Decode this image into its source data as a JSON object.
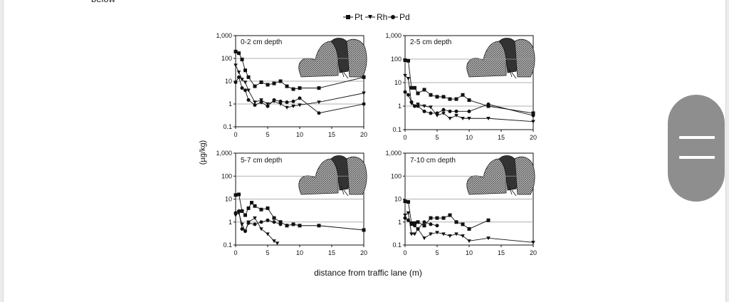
{
  "page": {
    "top_text": "below"
  },
  "figure": {
    "legend": [
      "Pt",
      "Rh",
      "Pd"
    ],
    "ylabel": "(µg/kg)",
    "xlabel": "distance from traffic lane (m)",
    "x_ticks": [
      "0",
      "5",
      "10",
      "15",
      "20"
    ],
    "y_ticks": [
      "0.1",
      "1",
      "10",
      "100",
      "1,000"
    ]
  },
  "chart_data": [
    {
      "type": "scatter",
      "title": "0-2 cm depth",
      "xlim": [
        0,
        20
      ],
      "ylim": [
        0.1,
        1000
      ],
      "yscale": "log",
      "grid": "horizontal",
      "series": [
        {
          "name": "Pt",
          "marker": "square",
          "points": [
            [
              0,
              200
            ],
            [
              0.5,
              170
            ],
            [
              1,
              90
            ],
            [
              1.5,
              30
            ],
            [
              2,
              15
            ],
            [
              3,
              6
            ],
            [
              4,
              9
            ],
            [
              5,
              7
            ],
            [
              6,
              8
            ],
            [
              7,
              10
            ],
            [
              8,
              6
            ],
            [
              9,
              4.5
            ],
            [
              10,
              5
            ],
            [
              13,
              5
            ],
            [
              20,
              15
            ]
          ]
        },
        {
          "name": "Rh",
          "marker": "triangle",
          "points": [
            [
              0,
              50
            ],
            [
              0.5,
              25
            ],
            [
              1,
              12
            ],
            [
              1.5,
              9
            ],
            [
              2,
              4
            ],
            [
              3,
              1.2
            ],
            [
              4,
              1.5
            ],
            [
              5,
              1
            ],
            [
              6,
              1.3
            ],
            [
              7,
              1
            ],
            [
              8,
              0.7
            ],
            [
              9,
              0.8
            ],
            [
              10,
              0.9
            ],
            [
              13,
              1.2
            ],
            [
              20,
              3
            ]
          ]
        },
        {
          "name": "Pd",
          "marker": "circle",
          "points": [
            [
              0,
              9
            ],
            [
              0.5,
              15
            ],
            [
              1,
              5
            ],
            [
              1.5,
              4
            ],
            [
              2,
              1.5
            ],
            [
              3,
              0.9
            ],
            [
              4,
              1.2
            ],
            [
              5,
              0.8
            ],
            [
              6,
              1.5
            ],
            [
              7,
              1.3
            ],
            [
              8,
              1.2
            ],
            [
              9,
              1.3
            ],
            [
              10,
              1.8
            ],
            [
              13,
              0.4
            ],
            [
              20,
              1
            ]
          ]
        }
      ]
    },
    {
      "type": "scatter",
      "title": "2-5 cm depth",
      "xlim": [
        0,
        20
      ],
      "ylim": [
        0.1,
        1000
      ],
      "yscale": "log",
      "grid": "horizontal",
      "series": [
        {
          "name": "Pt",
          "marker": "square",
          "points": [
            [
              0,
              90
            ],
            [
              0.5,
              85
            ],
            [
              1,
              6
            ],
            [
              1.5,
              6
            ],
            [
              2,
              3.5
            ],
            [
              3,
              5
            ],
            [
              4,
              3
            ],
            [
              5,
              2.5
            ],
            [
              6,
              2.5
            ],
            [
              7,
              2
            ],
            [
              8,
              2
            ],
            [
              9,
              3
            ],
            [
              10,
              1.8
            ],
            [
              13,
              1
            ],
            [
              20,
              0.5
            ]
          ]
        },
        {
          "name": "Rh",
          "marker": "triangle",
          "points": [
            [
              0,
              20
            ],
            [
              0.5,
              15
            ],
            [
              1,
              1.3
            ],
            [
              1.5,
              1
            ],
            [
              2,
              1.2
            ],
            [
              3,
              1
            ],
            [
              4,
              0.9
            ],
            [
              5,
              0.4
            ],
            [
              6,
              0.5
            ],
            [
              7,
              0.3
            ],
            [
              8,
              0.4
            ],
            [
              9,
              0.3
            ],
            [
              10,
              0.3
            ],
            [
              13,
              0.3
            ],
            [
              20,
              0.22
            ]
          ]
        },
        {
          "name": "Pd",
          "marker": "circle",
          "points": [
            [
              0,
              4
            ],
            [
              0.5,
              3
            ],
            [
              1,
              1.5
            ],
            [
              1.5,
              1
            ],
            [
              2,
              1
            ],
            [
              3,
              0.6
            ],
            [
              4,
              0.5
            ],
            [
              5,
              0.5
            ],
            [
              6,
              0.7
            ],
            [
              7,
              0.6
            ],
            [
              8,
              0.6
            ],
            [
              10,
              0.6
            ],
            [
              13,
              1.2
            ],
            [
              20,
              0.4
            ]
          ]
        }
      ]
    },
    {
      "type": "scatter",
      "title": "5-7 cm depth",
      "xlim": [
        0,
        20
      ],
      "ylim": [
        0.1,
        1000
      ],
      "yscale": "log",
      "grid": "horizontal",
      "series": [
        {
          "name": "Pt",
          "marker": "square",
          "points": [
            [
              0,
              15
            ],
            [
              0.5,
              16
            ],
            [
              1,
              3
            ],
            [
              1.5,
              2
            ],
            [
              2,
              4
            ],
            [
              2.5,
              7
            ],
            [
              3,
              5
            ],
            [
              4,
              3.5
            ],
            [
              5,
              4
            ],
            [
              6,
              1.5
            ],
            [
              7,
              1
            ],
            [
              8,
              0.7
            ],
            [
              9,
              0.8
            ],
            [
              10,
              0.7
            ],
            [
              13,
              0.7
            ],
            [
              20,
              0.45
            ]
          ]
        },
        {
          "name": "Rh",
          "marker": "triangle",
          "points": [
            [
              0,
              2
            ],
            [
              0.5,
              2.5
            ],
            [
              1,
              0.8
            ],
            [
              1.5,
              0.4
            ],
            [
              2,
              1
            ],
            [
              3,
              1.5
            ],
            [
              4,
              0.5
            ],
            [
              5,
              0.3
            ],
            [
              6,
              0.15
            ],
            [
              6.5,
              0.12
            ]
          ]
        },
        {
          "name": "Pd",
          "marker": "circle",
          "points": [
            [
              0,
              2.5
            ],
            [
              0.5,
              3
            ],
            [
              1,
              0.5
            ],
            [
              1.5,
              0.4
            ],
            [
              2,
              0.9
            ],
            [
              3,
              0.8
            ],
            [
              4,
              1
            ],
            [
              5,
              1.2
            ],
            [
              6,
              1
            ],
            [
              7,
              0.8
            ]
          ]
        }
      ]
    },
    {
      "type": "scatter",
      "title": "7-10 cm depth",
      "xlim": [
        0,
        20
      ],
      "ylim": [
        0.1,
        1000
      ],
      "yscale": "log",
      "grid": "horizontal",
      "series": [
        {
          "name": "Pt",
          "marker": "square",
          "points": [
            [
              0,
              8
            ],
            [
              0.5,
              7.5
            ],
            [
              1,
              0.9
            ],
            [
              1.5,
              0.9
            ],
            [
              2,
              1
            ],
            [
              3,
              0.7
            ],
            [
              4,
              1.5
            ],
            [
              5,
              1.5
            ],
            [
              6,
              1.5
            ],
            [
              7,
              2
            ],
            [
              8,
              1
            ],
            [
              9,
              0.8
            ],
            [
              10,
              0.5
            ],
            [
              13,
              1.2
            ]
          ]
        },
        {
          "name": "Rh",
          "marker": "triangle",
          "points": [
            [
              0,
              2
            ],
            [
              0.5,
              2.5
            ],
            [
              1,
              0.3
            ],
            [
              1.5,
              0.3
            ],
            [
              2,
              0.5
            ],
            [
              3,
              0.2
            ],
            [
              4,
              0.3
            ],
            [
              5,
              0.35
            ],
            [
              6,
              0.3
            ],
            [
              7,
              0.25
            ],
            [
              8,
              0.3
            ],
            [
              9,
              0.25
            ],
            [
              10,
              0.15
            ],
            [
              13,
              0.2
            ],
            [
              20,
              0.13
            ]
          ]
        },
        {
          "name": "Pd",
          "marker": "circle",
          "points": [
            [
              0,
              1.5
            ],
            [
              0.5,
              1.2
            ],
            [
              1,
              0.8
            ],
            [
              1.5,
              0.7
            ],
            [
              2,
              0.5
            ],
            [
              3,
              1
            ],
            [
              4,
              0.8
            ],
            [
              5,
              0.7
            ]
          ]
        }
      ]
    }
  ],
  "colors": {
    "ink": "#111111",
    "grid": "#999999",
    "handle": "#8e8e8e"
  }
}
